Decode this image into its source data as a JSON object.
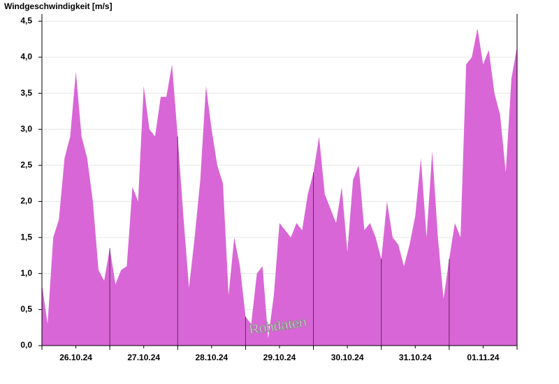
{
  "chart_data": {
    "type": "area",
    "title": "Windgeschwindigkeit [m/s]",
    "annotation": "Rohdaten",
    "categories": [
      null,
      null,
      null,
      null,
      null,
      null,
      "26.10.24",
      null,
      null,
      null,
      null,
      null,
      null,
      null,
      null,
      null,
      null,
      null,
      "27.10.24",
      null,
      null,
      null,
      null,
      null,
      null,
      null,
      null,
      null,
      null,
      null,
      "28.10.24",
      null,
      null,
      null,
      null,
      null,
      null,
      null,
      null,
      null,
      null,
      null,
      "29.10.24",
      null,
      null,
      null,
      null,
      null,
      null,
      null,
      null,
      null,
      null,
      null,
      "30.10.24",
      null,
      null,
      null,
      null,
      null,
      null,
      null,
      null,
      null,
      null,
      null,
      "31.10.24",
      null,
      null,
      null,
      null,
      null,
      null,
      null,
      null,
      null,
      null,
      null,
      "01.11.24",
      null,
      null,
      null,
      null,
      null,
      null
    ],
    "values": [
      0.85,
      0.3,
      1.5,
      1.75,
      2.6,
      2.9,
      3.8,
      2.9,
      2.6,
      2.0,
      1.05,
      0.9,
      1.35,
      0.85,
      1.05,
      1.1,
      2.2,
      2.0,
      3.6,
      3.0,
      2.9,
      3.45,
      3.45,
      3.9,
      2.9,
      1.8,
      0.8,
      1.5,
      2.3,
      3.6,
      3.0,
      2.5,
      2.25,
      0.7,
      1.5,
      1.1,
      0.4,
      0.3,
      1.0,
      1.1,
      0.1,
      0.7,
      1.7,
      1.6,
      1.5,
      1.7,
      1.6,
      2.1,
      2.4,
      2.9,
      2.1,
      1.9,
      1.7,
      2.2,
      1.3,
      2.3,
      2.5,
      1.6,
      1.7,
      1.5,
      1.2,
      2.0,
      1.5,
      1.4,
      1.1,
      1.4,
      1.8,
      2.6,
      1.5,
      2.7,
      1.5,
      0.65,
      1.2,
      1.7,
      1.5,
      3.9,
      4.0,
      4.4,
      3.9,
      4.1,
      3.5,
      3.2,
      2.4,
      3.7,
      4.15
    ],
    "color": "#d966d6",
    "ylim": [
      0,
      4.6
    ],
    "yticks": [
      {
        "value": 0,
        "label": "0,0"
      },
      {
        "value": 0.5,
        "label": "0,5"
      },
      {
        "value": 1,
        "label": "1,0"
      },
      {
        "value": 1.5,
        "label": "1,5"
      },
      {
        "value": 2,
        "label": "2,0"
      },
      {
        "value": 2.5,
        "label": "2,5"
      },
      {
        "value": 3,
        "label": "3,0"
      },
      {
        "value": 3.5,
        "label": "3,5"
      },
      {
        "value": 4,
        "label": "4,0"
      },
      {
        "value": 4.5,
        "label": "4,5"
      }
    ],
    "grid": true
  }
}
